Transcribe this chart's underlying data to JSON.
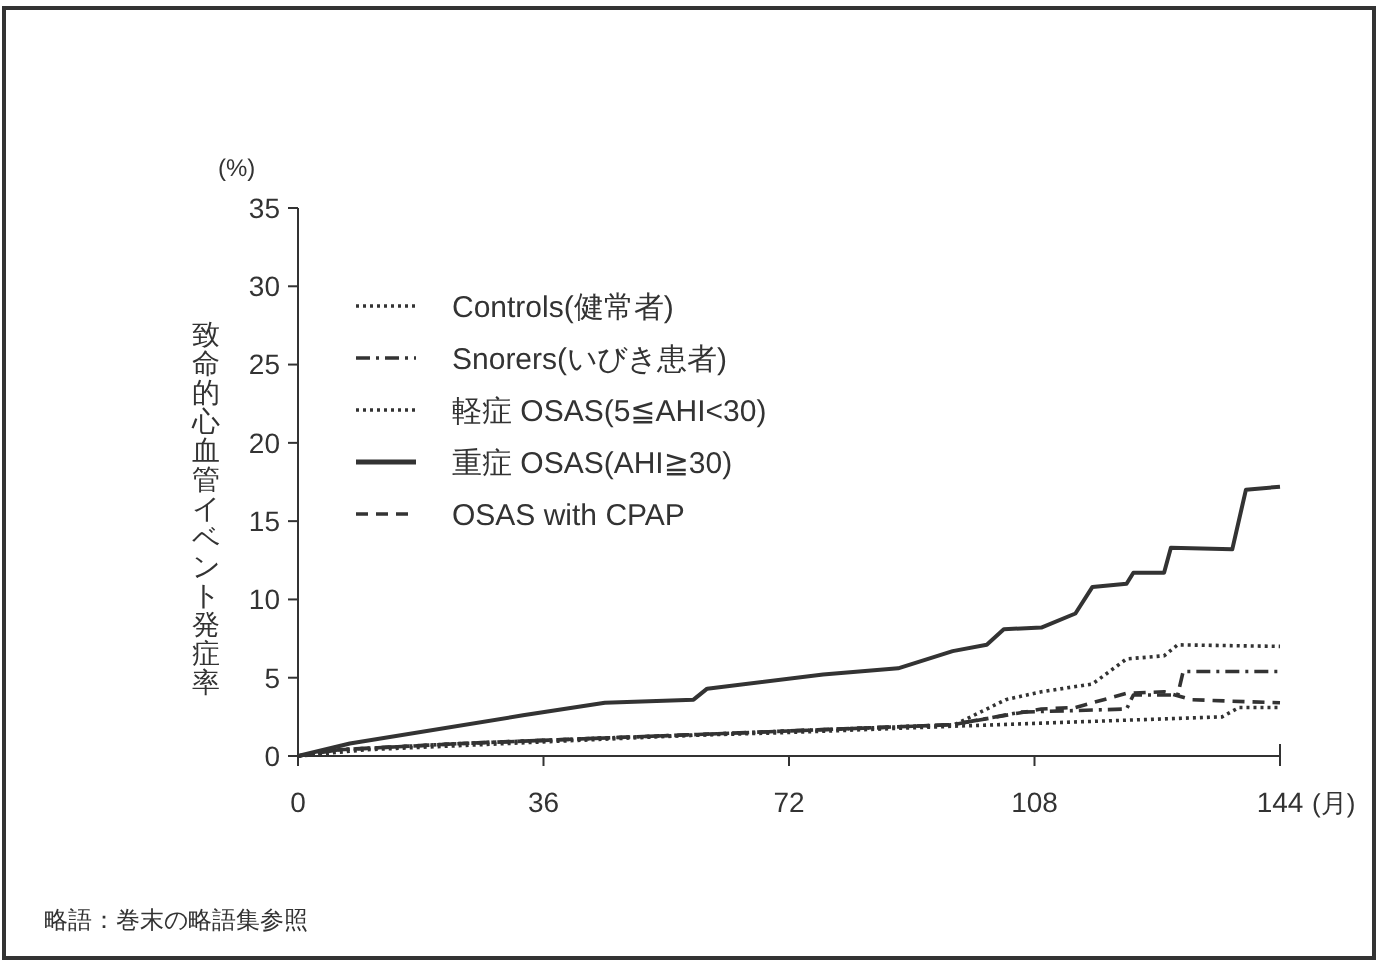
{
  "chart_data": {
    "type": "line",
    "ylabel": "致命的心血管イベント発症率",
    "xlabel": "(月)",
    "annotations": [
      "(%)",
      "略語：巻末の略語集参照"
    ],
    "xlim": [
      0,
      144
    ],
    "xticks": [
      0,
      36,
      72,
      108,
      144
    ],
    "ylim": [
      0,
      35
    ],
    "yticks": [
      0,
      5,
      10,
      15,
      20,
      25,
      30,
      35
    ],
    "grid": false,
    "legend": "top left",
    "marker": "none",
    "series": [
      {
        "name": "Controls(健常者)",
        "color": "#333333",
        "line_style": "dotted",
        "x": [
          0,
          6,
          24,
          48,
          72,
          96,
          135.5,
          138,
          144
        ],
        "values": [
          0,
          0.4,
          0.8,
          1.2,
          1.5,
          1.9,
          2.5,
          3.1,
          3.1
        ]
      },
      {
        "name": "Snorers(いびき患者)",
        "color": "#333333",
        "line_style": "dashdot",
        "x": [
          0,
          6,
          24,
          48,
          72,
          96,
          106,
          121.5,
          122.5,
          129,
          129.8,
          144
        ],
        "values": [
          0,
          0.4,
          0.8,
          1.2,
          1.6,
          2.0,
          2.8,
          3.0,
          3.9,
          3.9,
          5.4,
          5.4
        ]
      },
      {
        "name": "軽症 OSAS(5≦AHI<30)",
        "color": "#333333",
        "line_style": "dotted",
        "x": [
          0,
          10,
          36,
          72,
          96.3,
          103.8,
          109,
          116.5,
          121.5,
          127,
          129,
          144
        ],
        "values": [
          0,
          0.4,
          0.9,
          1.6,
          2.0,
          3.6,
          4.1,
          4.6,
          6.2,
          6.4,
          7.1,
          7.0
        ]
      },
      {
        "name": "重症 OSAS(AHI≧30)",
        "color": "#333333",
        "line_style": "solid",
        "x": [
          0,
          7.6,
          33,
          45,
          58,
          60,
          77,
          88,
          96,
          101,
          103.5,
          109,
          114,
          116.5,
          121.5,
          122.5,
          127,
          128,
          137,
          139,
          144
        ],
        "values": [
          0,
          0.8,
          2.6,
          3.4,
          3.6,
          4.3,
          5.2,
          5.6,
          6.7,
          7.1,
          8.1,
          8.2,
          9.1,
          10.8,
          11.0,
          11.7,
          11.7,
          13.3,
          13.2,
          17.0,
          17.2
        ]
      },
      {
        "name": "OSAS with CPAP",
        "color": "#333333",
        "line_style": "dashed",
        "x": [
          0,
          6,
          24,
          48,
          72,
          96,
          109,
          114,
          121.5,
          127,
          131,
          137,
          144
        ],
        "values": [
          0,
          0.4,
          0.8,
          1.2,
          1.6,
          2.0,
          3.0,
          3.1,
          4.0,
          4.1,
          3.6,
          3.5,
          3.4
        ]
      }
    ]
  }
}
